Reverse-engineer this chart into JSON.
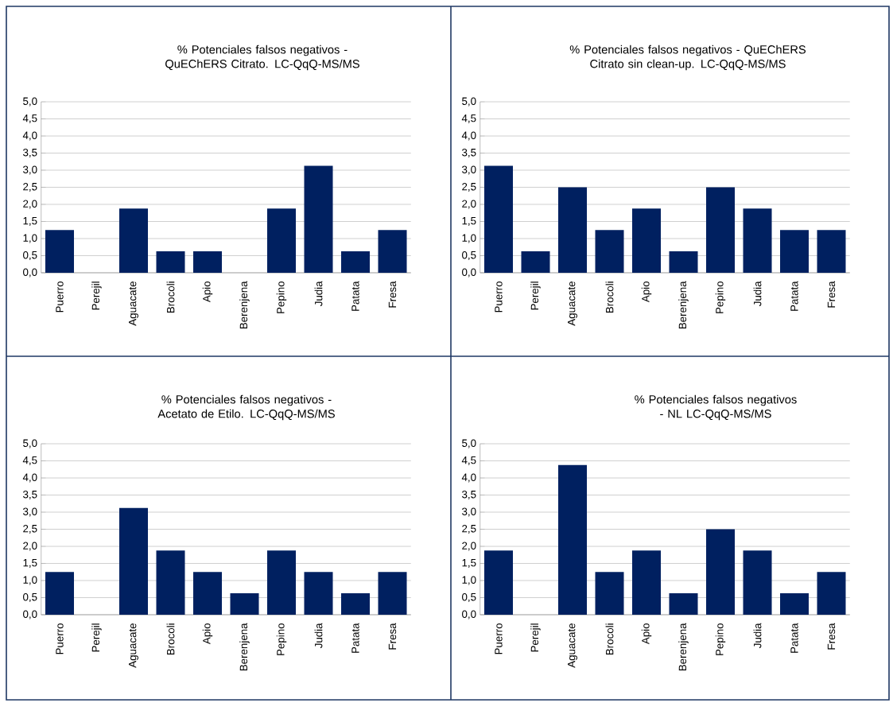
{
  "chart_data": [
    {
      "type": "bar",
      "title": "% Potenciales falsos negativos - QuEChERS Citrato. LC-QqQ-MS/MS",
      "categories": [
        "Puerro",
        "Perejil",
        "Aguacate",
        "Brocoli",
        "Apio",
        "Berenjena",
        "Pepino",
        "Judia",
        "Patata",
        "Fresa"
      ],
      "values": [
        1.25,
        0,
        1.88,
        0.63,
        0.63,
        0,
        1.88,
        3.13,
        0.63,
        1.25
      ],
      "color": "#002060",
      "ylim": [
        0,
        5
      ],
      "yticks": [
        {
          "value": 0,
          "label": "0,0"
        },
        {
          "value": 0.5,
          "label": "0,5"
        },
        {
          "value": 1,
          "label": "1,0"
        },
        {
          "value": 1.5,
          "label": "1,5"
        },
        {
          "value": 2,
          "label": "2,0"
        },
        {
          "value": 2.5,
          "label": "2,5"
        },
        {
          "value": 3,
          "label": "3,0"
        },
        {
          "value": 3.5,
          "label": "3,5"
        },
        {
          "value": 4,
          "label": "4,0"
        },
        {
          "value": 4.5,
          "label": "4,5"
        },
        {
          "value": 5,
          "label": "5,0"
        }
      ],
      "grid": "y"
    },
    {
      "type": "bar",
      "title": "% Potenciales falsos negativos - QuEChERS Citrato sin clean-up. LC-QqQ-MS/MS",
      "categories": [
        "Puerro",
        "Perejil",
        "Aguacate",
        "Brocoli",
        "Apio",
        "Berenjena",
        "Pepino",
        "Judia",
        "Patata",
        "Fresa"
      ],
      "values": [
        3.13,
        0.63,
        2.5,
        1.25,
        1.88,
        0.63,
        2.5,
        1.88,
        1.25,
        1.25
      ],
      "color": "#002060",
      "ylim": [
        0,
        5
      ],
      "yticks": [
        {
          "value": 0,
          "label": "0,0"
        },
        {
          "value": 0.5,
          "label": "0,5"
        },
        {
          "value": 1,
          "label": "1,0"
        },
        {
          "value": 1.5,
          "label": "1,5"
        },
        {
          "value": 2,
          "label": "2,0"
        },
        {
          "value": 2.5,
          "label": "2,5"
        },
        {
          "value": 3,
          "label": "3,0"
        },
        {
          "value": 3.5,
          "label": "3,5"
        },
        {
          "value": 4,
          "label": "4,0"
        },
        {
          "value": 4.5,
          "label": "4,5"
        },
        {
          "value": 5,
          "label": "5,0"
        }
      ],
      "grid": "y"
    },
    {
      "type": "bar",
      "title": "% Potenciales falsos negativos - Acetato de Etilo. LC-QqQ-MS/MS",
      "categories": [
        "Puerro",
        "Perejil",
        "Aguacate",
        "Brocoli",
        "Apio",
        "Berenjena",
        "Pepino",
        "Judia",
        "Patata",
        "Fresa"
      ],
      "values": [
        1.25,
        0,
        3.13,
        1.88,
        1.25,
        0.63,
        1.88,
        1.25,
        0.63,
        1.25
      ],
      "color": "#002060",
      "ylim": [
        0,
        5
      ],
      "yticks": [
        {
          "value": 0,
          "label": "0,0"
        },
        {
          "value": 0.5,
          "label": "0,5"
        },
        {
          "value": 1,
          "label": "1,0"
        },
        {
          "value": 1.5,
          "label": "1,5"
        },
        {
          "value": 2,
          "label": "2,0"
        },
        {
          "value": 2.5,
          "label": "2,5"
        },
        {
          "value": 3,
          "label": "3,0"
        },
        {
          "value": 3.5,
          "label": "3,5"
        },
        {
          "value": 4,
          "label": "4,0"
        },
        {
          "value": 4.5,
          "label": "4,5"
        },
        {
          "value": 5,
          "label": "5,0"
        }
      ],
      "grid": "y"
    },
    {
      "type": "bar",
      "title": "% Potenciales falsos negativos - NL LC-QqQ-MS/MS",
      "categories": [
        "Puerro",
        "Perejil",
        "Aguacate",
        "Brocoli",
        "Apio",
        "Berenjena",
        "Pepino",
        "Judia",
        "Patata",
        "Fresa"
      ],
      "values": [
        1.88,
        0,
        4.38,
        1.25,
        1.88,
        0.63,
        2.5,
        1.88,
        0.63,
        1.25
      ],
      "color": "#002060",
      "ylim": [
        0,
        5
      ],
      "yticks": [
        {
          "value": 0,
          "label": "0,0"
        },
        {
          "value": 0.5,
          "label": "0,5"
        },
        {
          "value": 1,
          "label": "1,0"
        },
        {
          "value": 1.5,
          "label": "1,5"
        },
        {
          "value": 2,
          "label": "2,0"
        },
        {
          "value": 2.5,
          "label": "2,5"
        },
        {
          "value": 3,
          "label": "3,0"
        },
        {
          "value": 3.5,
          "label": "3,5"
        },
        {
          "value": 4,
          "label": "4,0"
        },
        {
          "value": 4.5,
          "label": "4,5"
        },
        {
          "value": 5,
          "label": "5,0"
        }
      ],
      "grid": "y"
    }
  ]
}
